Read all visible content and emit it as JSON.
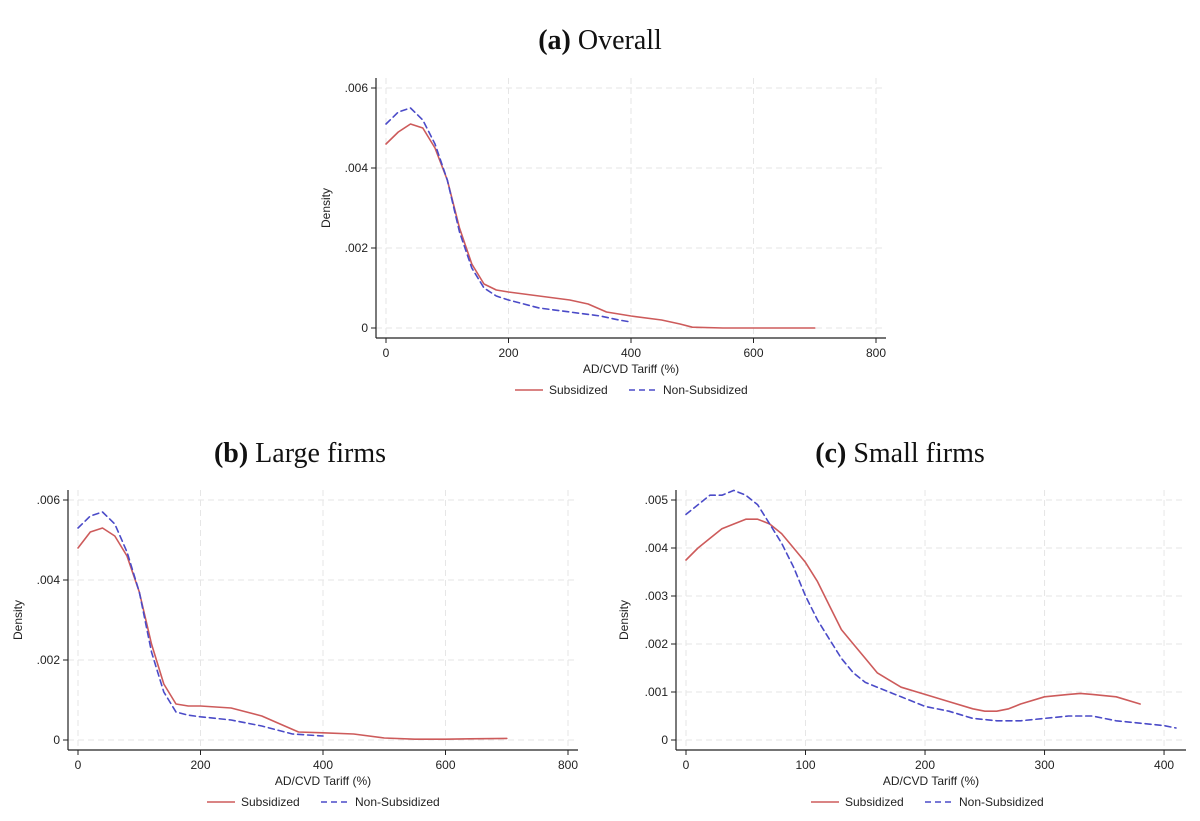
{
  "legend_labels": {
    "subsidized": "Subsidized",
    "non_subsidized": "Non-Subsidized"
  },
  "colors": {
    "subsidized": "#cd5b5b",
    "non_subsidized": "#4b4bc8",
    "grid": "#e6e6e6",
    "axis": "#222222"
  },
  "chart_data": [
    {
      "panel_label": "(a)",
      "title": "Overall",
      "type": "line",
      "xlabel": "AD/CVD Tariff (%)",
      "ylabel": "Density",
      "xlim": [
        0,
        800
      ],
      "ylim": [
        0,
        0.006
      ],
      "xticks": [
        0,
        200,
        400,
        600,
        800
      ],
      "xtick_labels": [
        "0",
        "200",
        "400",
        "600",
        "800"
      ],
      "yticks": [
        0,
        0.002,
        0.004,
        0.006
      ],
      "ytick_labels": [
        "0",
        ".002",
        ".004",
        ".006"
      ],
      "grid": true,
      "legend_position": "bottom",
      "series": [
        {
          "name": "Subsidized",
          "style": "solid",
          "x": [
            0,
            20,
            40,
            60,
            80,
            100,
            120,
            140,
            160,
            180,
            200,
            250,
            300,
            330,
            360,
            400,
            450,
            480,
            500,
            550,
            600,
            650,
            700
          ],
          "y": [
            0.0046,
            0.0049,
            0.0051,
            0.005,
            0.0045,
            0.0037,
            0.0025,
            0.0016,
            0.0011,
            0.00095,
            0.0009,
            0.0008,
            0.0007,
            0.0006,
            0.0004,
            0.0003,
            0.0002,
            0.0001,
            2e-05,
            0.0,
            0.0,
            0.0,
            0.0
          ]
        },
        {
          "name": "Non-Subsidized",
          "style": "dashed",
          "x": [
            0,
            20,
            40,
            60,
            80,
            100,
            120,
            140,
            160,
            180,
            200,
            250,
            300,
            350,
            380,
            400
          ],
          "y": [
            0.0051,
            0.0054,
            0.0055,
            0.0052,
            0.0046,
            0.0037,
            0.0024,
            0.0015,
            0.001,
            0.0008,
            0.0007,
            0.0005,
            0.0004,
            0.0003,
            0.0002,
            0.00015
          ]
        }
      ]
    },
    {
      "panel_label": "(b)",
      "title": "Large firms",
      "type": "line",
      "xlabel": "AD/CVD Tariff (%)",
      "ylabel": "Density",
      "xlim": [
        0,
        800
      ],
      "ylim": [
        0,
        0.006
      ],
      "xticks": [
        0,
        200,
        400,
        600,
        800
      ],
      "xtick_labels": [
        "0",
        "200",
        "400",
        "600",
        "800"
      ],
      "yticks": [
        0,
        0.002,
        0.004,
        0.006
      ],
      "ytick_labels": [
        "0",
        ".002",
        ".004",
        ".006"
      ],
      "grid": true,
      "legend_position": "bottom",
      "series": [
        {
          "name": "Subsidized",
          "style": "solid",
          "x": [
            0,
            20,
            40,
            60,
            80,
            100,
            120,
            140,
            160,
            180,
            200,
            250,
            300,
            330,
            360,
            400,
            450,
            500,
            550,
            600,
            640,
            700
          ],
          "y": [
            0.0048,
            0.0052,
            0.0053,
            0.0051,
            0.0046,
            0.0037,
            0.0024,
            0.0014,
            0.0009,
            0.00085,
            0.00085,
            0.0008,
            0.0006,
            0.0004,
            0.0002,
            0.00018,
            0.00015,
            5e-05,
            2e-05,
            2e-05,
            3e-05,
            4e-05
          ]
        },
        {
          "name": "Non-Subsidized",
          "style": "dashed",
          "x": [
            0,
            20,
            40,
            60,
            80,
            100,
            120,
            140,
            160,
            180,
            200,
            250,
            300,
            350,
            400
          ],
          "y": [
            0.0053,
            0.0056,
            0.0057,
            0.0054,
            0.0047,
            0.0037,
            0.0022,
            0.0012,
            0.0007,
            0.00062,
            0.00058,
            0.0005,
            0.00035,
            0.00015,
            0.0001
          ]
        }
      ]
    },
    {
      "panel_label": "(c)",
      "title": "Small firms",
      "type": "line",
      "xlabel": "AD/CVD Tariff (%)",
      "ylabel": "Density",
      "xlim": [
        0,
        410
      ],
      "ylim": [
        0,
        0.005
      ],
      "xticks": [
        0,
        100,
        200,
        300,
        400
      ],
      "xtick_labels": [
        "0",
        "100",
        "200",
        "300",
        "400"
      ],
      "yticks": [
        0,
        0.001,
        0.002,
        0.003,
        0.004,
        0.005
      ],
      "ytick_labels": [
        "0",
        ".001",
        ".002",
        ".003",
        ".004",
        ".005"
      ],
      "grid": true,
      "legend_position": "bottom",
      "series": [
        {
          "name": "Subsidized",
          "style": "solid",
          "x": [
            0,
            10,
            20,
            30,
            40,
            50,
            60,
            70,
            80,
            90,
            100,
            110,
            120,
            130,
            140,
            150,
            160,
            180,
            200,
            220,
            240,
            250,
            260,
            270,
            280,
            300,
            320,
            330,
            340,
            360,
            380
          ],
          "y": [
            0.00375,
            0.004,
            0.0042,
            0.0044,
            0.0045,
            0.0046,
            0.0046,
            0.0045,
            0.0043,
            0.004,
            0.0037,
            0.0033,
            0.0028,
            0.0023,
            0.002,
            0.0017,
            0.0014,
            0.0011,
            0.00095,
            0.0008,
            0.00065,
            0.0006,
            0.0006,
            0.00065,
            0.00075,
            0.0009,
            0.00095,
            0.00097,
            0.00095,
            0.0009,
            0.00075
          ]
        },
        {
          "name": "Non-Subsidized",
          "style": "dashed",
          "x": [
            0,
            10,
            20,
            30,
            40,
            50,
            60,
            70,
            80,
            90,
            100,
            110,
            120,
            130,
            140,
            150,
            160,
            180,
            200,
            220,
            240,
            260,
            280,
            300,
            320,
            340,
            360,
            380,
            400,
            410
          ],
          "y": [
            0.0047,
            0.0049,
            0.0051,
            0.0051,
            0.0052,
            0.0051,
            0.0049,
            0.0045,
            0.0041,
            0.0036,
            0.003,
            0.0025,
            0.0021,
            0.0017,
            0.0014,
            0.0012,
            0.0011,
            0.0009,
            0.0007,
            0.0006,
            0.00045,
            0.0004,
            0.0004,
            0.00045,
            0.0005,
            0.0005,
            0.0004,
            0.00035,
            0.0003,
            0.00025
          ]
        }
      ]
    }
  ]
}
